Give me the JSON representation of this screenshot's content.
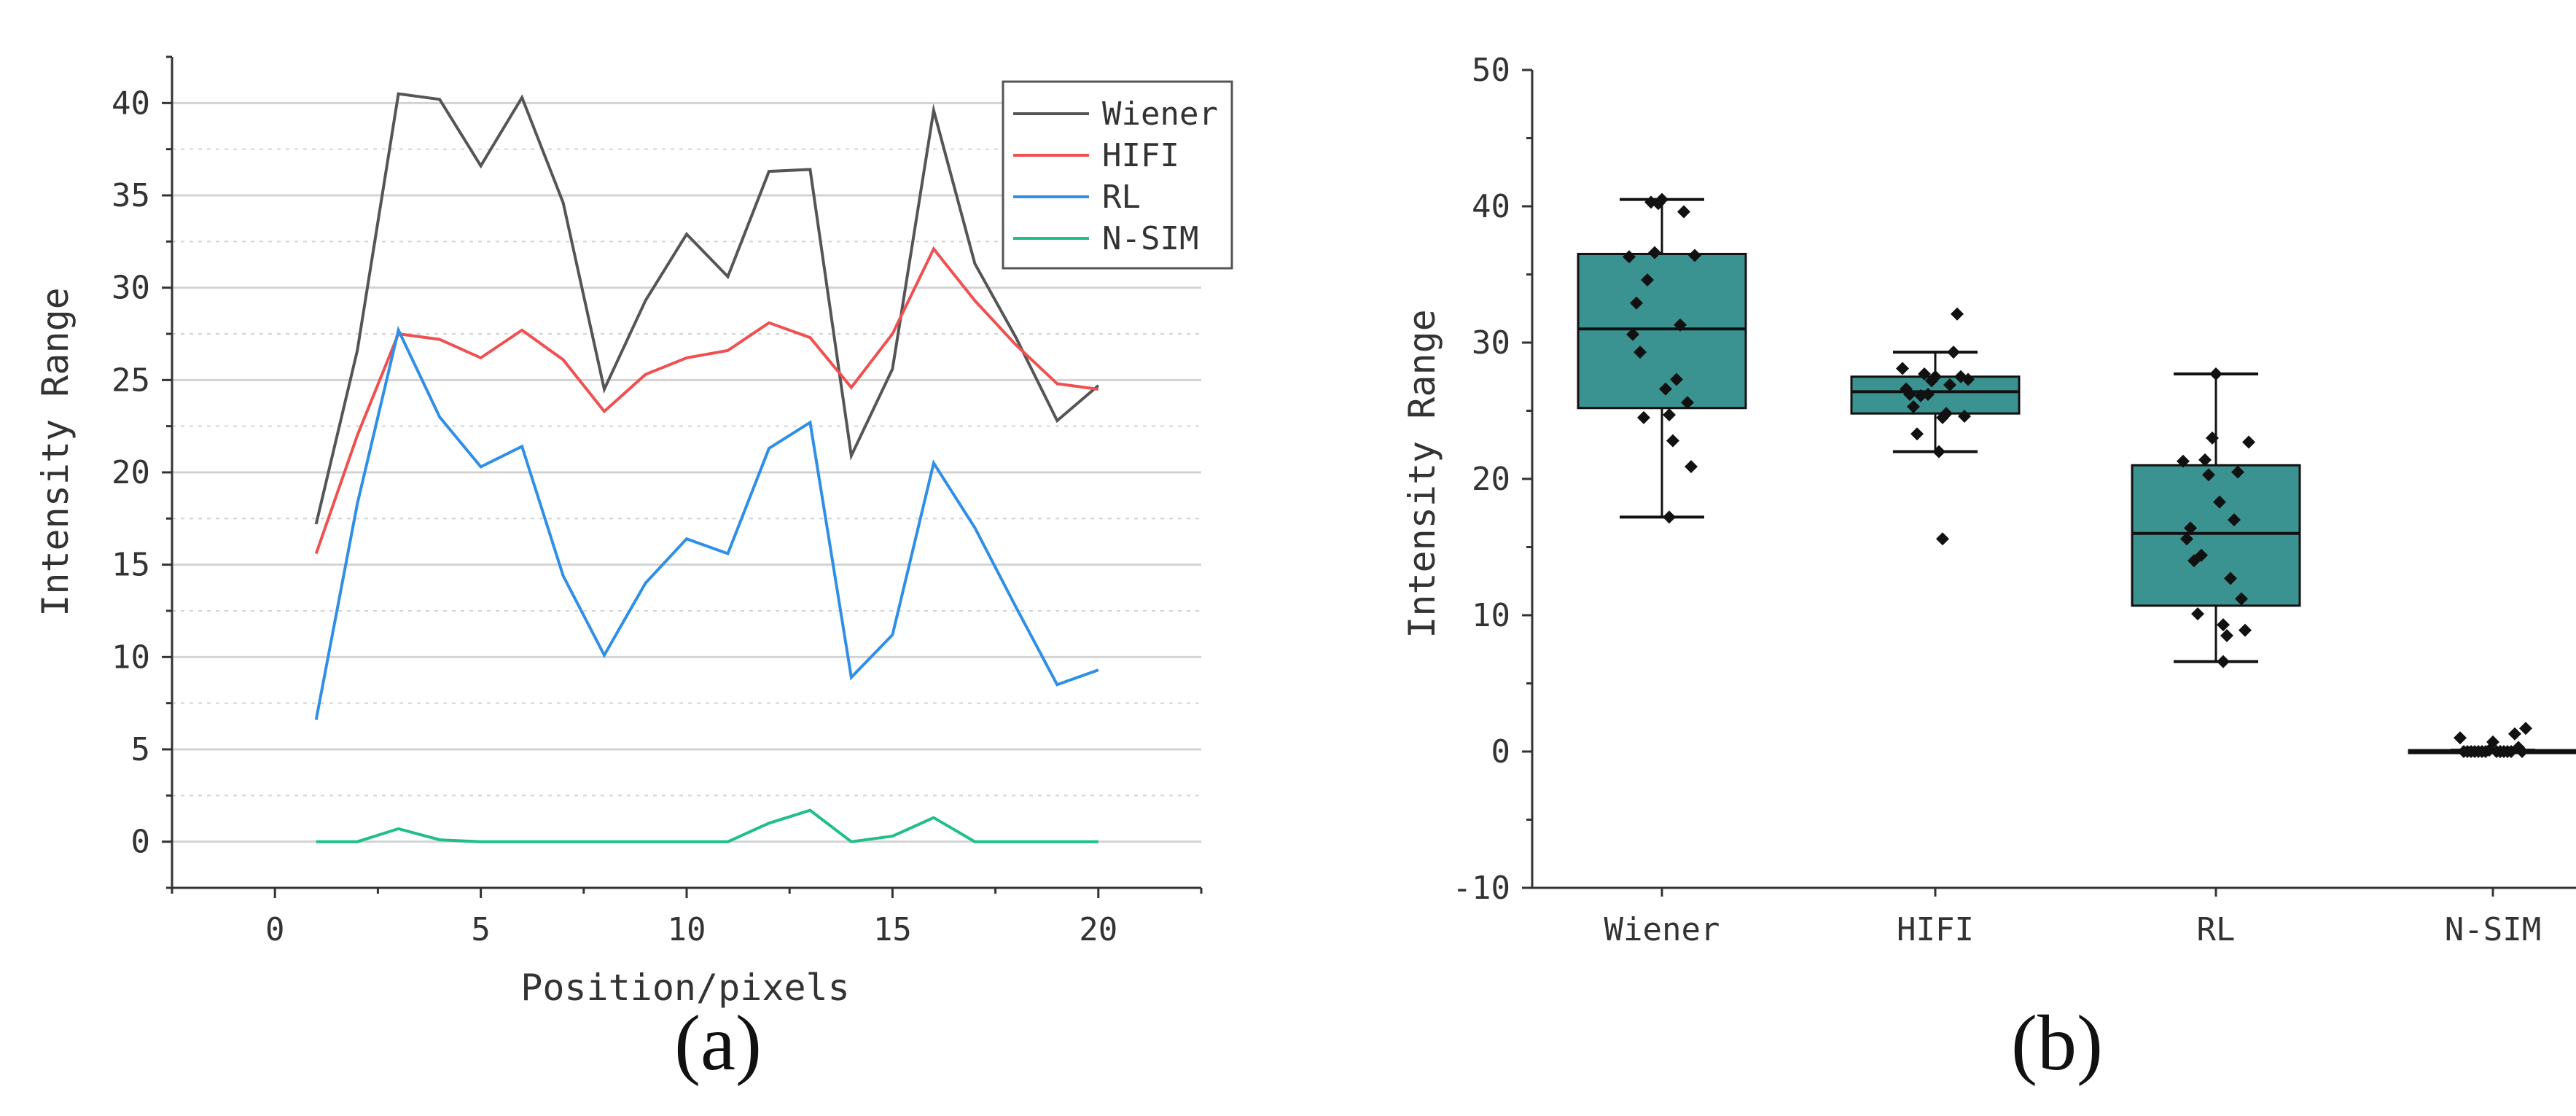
{
  "panel_labels": {
    "a": "(a)",
    "b": "(b)"
  },
  "colors": {
    "Wiener": "#555555",
    "HIFI": "#f05050",
    "RL": "#2f8fe6",
    "N-SIM": "#1fbf86",
    "box_fill": "#3a9391",
    "axis": "#333333",
    "grid": "#d3d3d3",
    "points": "#111111"
  },
  "chart_data": [
    {
      "type": "line",
      "title": "",
      "xlabel": "Position/pixels",
      "ylabel": "Intensity Range",
      "xlim": [
        -2.5,
        22.5
      ],
      "ylim": [
        -2.5,
        42.5
      ],
      "xticks": [
        0,
        5,
        10,
        15,
        20
      ],
      "yticks": [
        0,
        5,
        10,
        15,
        20,
        25,
        30,
        35,
        40
      ],
      "grid": true,
      "legend": "top-right",
      "x": [
        1,
        2,
        3,
        4,
        5,
        6,
        7,
        8,
        9,
        10,
        11,
        12,
        13,
        14,
        15,
        16,
        17,
        18,
        19,
        20
      ],
      "series": [
        {
          "name": "Wiener",
          "values": [
            17.2,
            26.6,
            40.5,
            40.2,
            36.6,
            40.3,
            34.6,
            24.5,
            29.3,
            32.9,
            30.6,
            36.3,
            36.4,
            20.9,
            25.6,
            39.6,
            31.3,
            27.3,
            22.8,
            24.7
          ]
        },
        {
          "name": "HIFI",
          "values": [
            15.6,
            22.0,
            27.5,
            27.2,
            26.2,
            27.7,
            26.1,
            23.3,
            25.3,
            26.2,
            26.6,
            28.1,
            27.3,
            24.6,
            27.5,
            32.1,
            29.3,
            26.9,
            24.8,
            24.5
          ]
        },
        {
          "name": "RL",
          "values": [
            6.6,
            18.3,
            27.7,
            23.0,
            20.3,
            21.4,
            14.4,
            10.1,
            14.0,
            16.4,
            15.6,
            21.3,
            22.7,
            8.9,
            11.2,
            20.5,
            17.0,
            12.7,
            8.5,
            9.3
          ]
        },
        {
          "name": "N-SIM",
          "values": [
            0.0,
            0.0,
            0.7,
            0.1,
            0.0,
            0.0,
            0.0,
            0.0,
            0.0,
            0.0,
            0.0,
            1.0,
            1.7,
            0.0,
            0.3,
            1.3,
            0.0,
            0.0,
            0.0,
            0.0
          ]
        }
      ]
    },
    {
      "type": "box",
      "title": "",
      "xlabel": "",
      "ylabel": "Intensity Range",
      "ylim": [
        -10,
        50
      ],
      "yticks": [
        -10,
        0,
        10,
        20,
        30,
        40,
        50
      ],
      "grid": false,
      "categories": [
        "Wiener",
        "HIFI",
        "RL",
        "N-SIM"
      ],
      "boxes": [
        {
          "name": "Wiener",
          "q1": 25.2,
          "median": 31.0,
          "q3": 36.5,
          "whisker_low": 17.2,
          "whisker_high": 40.5
        },
        {
          "name": "HIFI",
          "q1": 24.8,
          "median": 26.4,
          "q3": 27.5,
          "whisker_low": 22.0,
          "whisker_high": 29.3
        },
        {
          "name": "RL",
          "q1": 10.7,
          "median": 16.0,
          "q3": 21.0,
          "whisker_low": 6.6,
          "whisker_high": 27.7
        },
        {
          "name": "N-SIM",
          "q1": 0.0,
          "median": 0.0,
          "q3": 0.1,
          "whisker_low": 0.0,
          "whisker_high": 0.1
        }
      ]
    }
  ]
}
